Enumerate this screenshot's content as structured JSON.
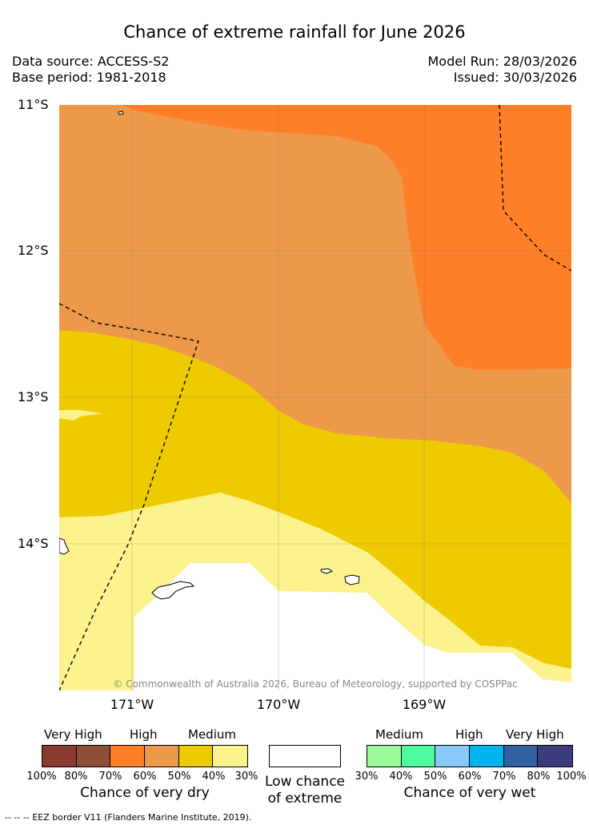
{
  "header": {
    "title": "Chance of extreme rainfall for June 2026",
    "data_source": "Data source: ACCESS-S2",
    "base_period": "Base period: 1981-2018",
    "model_run": "Model Run: 28/03/2026",
    "issued": "Issued: 30/03/2026"
  },
  "map": {
    "lat_labels": [
      "11°S",
      "12°S",
      "13°S",
      "14°S"
    ],
    "lon_labels": [
      "171°W",
      "170°W",
      "169°W"
    ],
    "copyright": "© Commonwealth of Australia 2026, Bureau of Meteorology, supported by COSPPac",
    "zone_colors": {
      "dry_70_80": "#fe7f27",
      "dry_60_70": "#ec9a4a",
      "dry_40_50": "#eeca00",
      "dry_30_40": "#fdf38e",
      "low": "#ffffff"
    }
  },
  "legend": {
    "dry": {
      "categories": [
        "Very High",
        "High",
        "Medium"
      ],
      "colors": [
        "#8b3a2f",
        "#8e4e3a",
        "#fe7f27",
        "#ec9a4a",
        "#eeca00",
        "#fdf38e"
      ],
      "ticks": [
        "100%",
        "80%",
        "70%",
        "60%",
        "50%",
        "40%",
        "30%"
      ],
      "title": "Chance of very dry"
    },
    "low": {
      "line1": "Low chance",
      "line2": "of extreme",
      "color": "#ffffff"
    },
    "wet": {
      "categories": [
        "Medium",
        "High",
        "Very High"
      ],
      "colors": [
        "#99fc99",
        "#4efda0",
        "#86c9fa",
        "#00b5ef",
        "#3260a0",
        "#3c3b7b"
      ],
      "ticks": [
        "30%",
        "40%",
        "50%",
        "60%",
        "70%",
        "80%",
        "100%"
      ],
      "title": "Chance of very wet"
    }
  },
  "footer": {
    "line_symbol": "-- -- --",
    "text": "EEZ border V11 (Flanders Marine Institute, 2019)."
  }
}
